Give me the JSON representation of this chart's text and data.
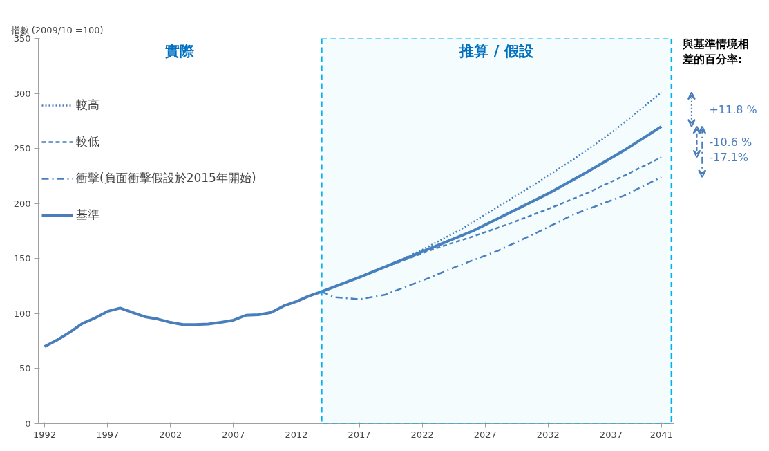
{
  "chart_data": {
    "type": "line",
    "ylabel": "指數 (2009/10 =100)",
    "xlim": [
      1991.5,
      2042
    ],
    "xticks": [
      1992,
      1997,
      2002,
      2007,
      2012,
      2017,
      2022,
      2027,
      2032,
      2037,
      2041
    ],
    "ylim": [
      0,
      350
    ],
    "yticks": [
      0,
      50,
      100,
      150,
      200,
      250,
      300,
      350
    ],
    "grid": false,
    "legend": "top left",
    "series": [
      {
        "name": "較高",
        "color": "#4a7ebb",
        "line_style": "dotted",
        "x": [
          2019,
          2022,
          2025,
          2028,
          2031,
          2034,
          2037,
          2041
        ],
        "values": [
          142,
          158,
          176,
          197,
          218,
          240,
          264,
          301
        ]
      },
      {
        "name": "較低",
        "color": "#4a7ebb",
        "line_style": "dashed",
        "x": [
          2019,
          2023,
          2026,
          2029,
          2032,
          2035,
          2038,
          2041
        ],
        "values": [
          142,
          159,
          170,
          182,
          195,
          209,
          225,
          242
        ]
      },
      {
        "name": "衝擊(負面衝擊假設於2015年開始)",
        "color": "#4a7ebb",
        "line_style": "dashdot",
        "x": [
          2014,
          2015,
          2017,
          2019,
          2022,
          2025,
          2028,
          2031,
          2034,
          2038,
          2041
        ],
        "values": [
          120,
          115,
          113,
          117,
          130,
          144,
          157,
          173,
          190,
          207,
          224
        ]
      },
      {
        "name": "基準",
        "color": "#4a7ebb",
        "line_style": "solid",
        "x": [
          1992,
          1993,
          1994,
          1995,
          1996,
          1997,
          1998,
          1999,
          2000,
          2001,
          2002,
          2003,
          2004,
          2005,
          2006,
          2007,
          2008,
          2009,
          2010,
          2011,
          2012,
          2013,
          2014,
          2017,
          2020,
          2023,
          2026,
          2029,
          2032,
          2035,
          2038,
          2041
        ],
        "values": [
          70,
          76,
          83,
          91,
          96,
          102,
          105,
          101,
          97,
          95,
          92,
          90,
          90,
          90.5,
          92,
          94,
          98.5,
          99,
          101,
          107,
          111,
          116,
          120,
          133,
          147,
          161,
          175,
          192,
          209,
          228,
          248,
          270
        ]
      }
    ],
    "bands": [
      {
        "axis": "x",
        "from": 2014,
        "to": 2041.8,
        "label": "推算 / 假設",
        "color": "#00b0f0"
      }
    ],
    "annotations": [
      "實際",
      "與基準情境相差的百分率:",
      "+11.8 %",
      "-10.6 %",
      "-17.1%"
    ]
  }
}
